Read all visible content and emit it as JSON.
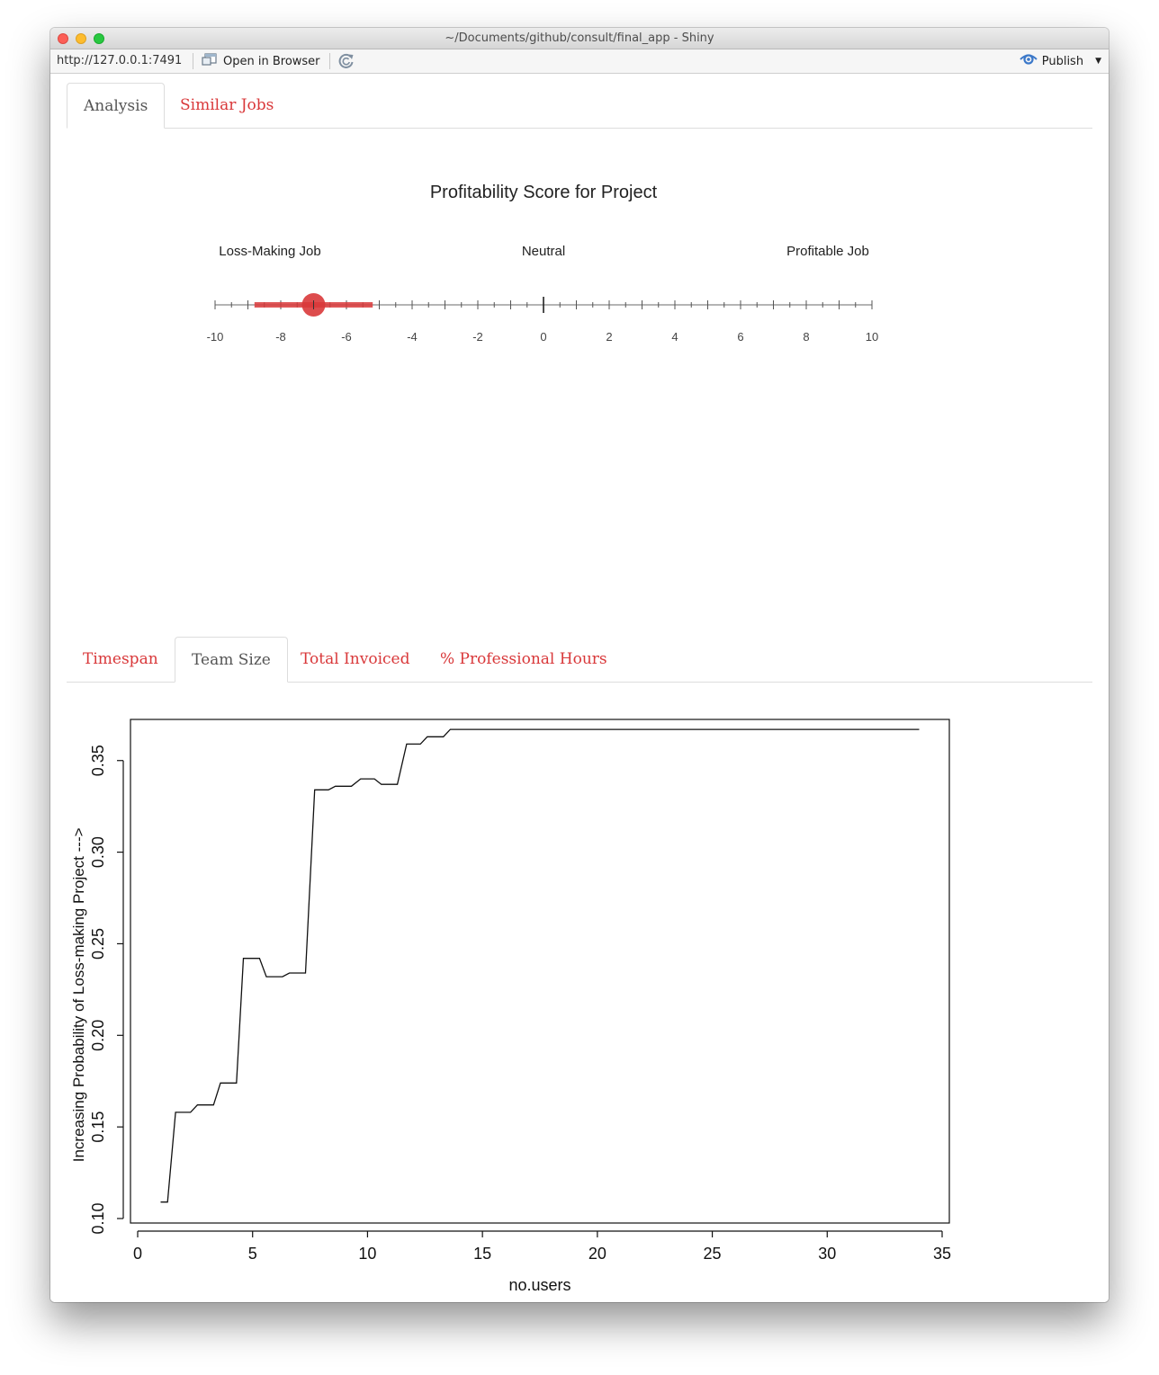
{
  "window": {
    "title": "~/Documents/github/consult/final_app - Shiny"
  },
  "toolbar": {
    "url": "http://127.0.0.1:7491",
    "open_in_browser": "Open in Browser",
    "publish": "Publish"
  },
  "top_tabs": [
    {
      "label": "Analysis",
      "active": true
    },
    {
      "label": "Similar Jobs",
      "active": false
    }
  ],
  "gauge": {
    "title": "Profitability Score for Project",
    "labels": {
      "left": "Loss-Making Job",
      "center": "Neutral",
      "right": "Profitable Job"
    },
    "min": -10,
    "max": 10,
    "tick_labels": [
      "-10",
      "-8",
      "-6",
      "-4",
      "-2",
      "0",
      "2",
      "4",
      "6",
      "8",
      "10"
    ],
    "score": -7,
    "interval": [
      -8.8,
      -5.2
    ],
    "marker_color": "#d9383a"
  },
  "bottom_tabs": [
    {
      "label": "Timespan",
      "active": false
    },
    {
      "label": "Team Size",
      "active": true
    },
    {
      "label": "Total Invoiced",
      "active": false
    },
    {
      "label": "% Professional Hours",
      "active": false
    }
  ],
  "chart_data": {
    "type": "line",
    "xlabel": "no.users",
    "ylabel": "Increasing Probability of Loss-making Project --->",
    "xlim": [
      0,
      35
    ],
    "ylim": [
      0.1,
      0.37
    ],
    "xticks": [
      "0",
      "5",
      "10",
      "15",
      "20",
      "25",
      "30",
      "35"
    ],
    "yticks": [
      "0.10",
      "0.15",
      "0.20",
      "0.25",
      "0.30",
      "0.35"
    ],
    "grid": false,
    "series": [
      {
        "x": [
          1.0,
          1.3,
          1.65,
          2.3,
          2.6,
          3.3,
          3.6,
          4.3,
          4.6,
          5.3,
          5.6,
          6.3,
          6.6,
          7.3,
          7.7,
          8.3,
          8.6,
          9.3,
          9.7,
          10.3,
          10.6,
          11.3,
          11.7,
          12.3,
          12.6,
          13.3,
          13.6,
          34.0
        ],
        "y": [
          0.109,
          0.109,
          0.158,
          0.158,
          0.162,
          0.162,
          0.174,
          0.174,
          0.242,
          0.242,
          0.232,
          0.232,
          0.234,
          0.234,
          0.334,
          0.334,
          0.336,
          0.336,
          0.34,
          0.34,
          0.337,
          0.337,
          0.359,
          0.359,
          0.363,
          0.363,
          0.367,
          0.367
        ]
      }
    ]
  }
}
